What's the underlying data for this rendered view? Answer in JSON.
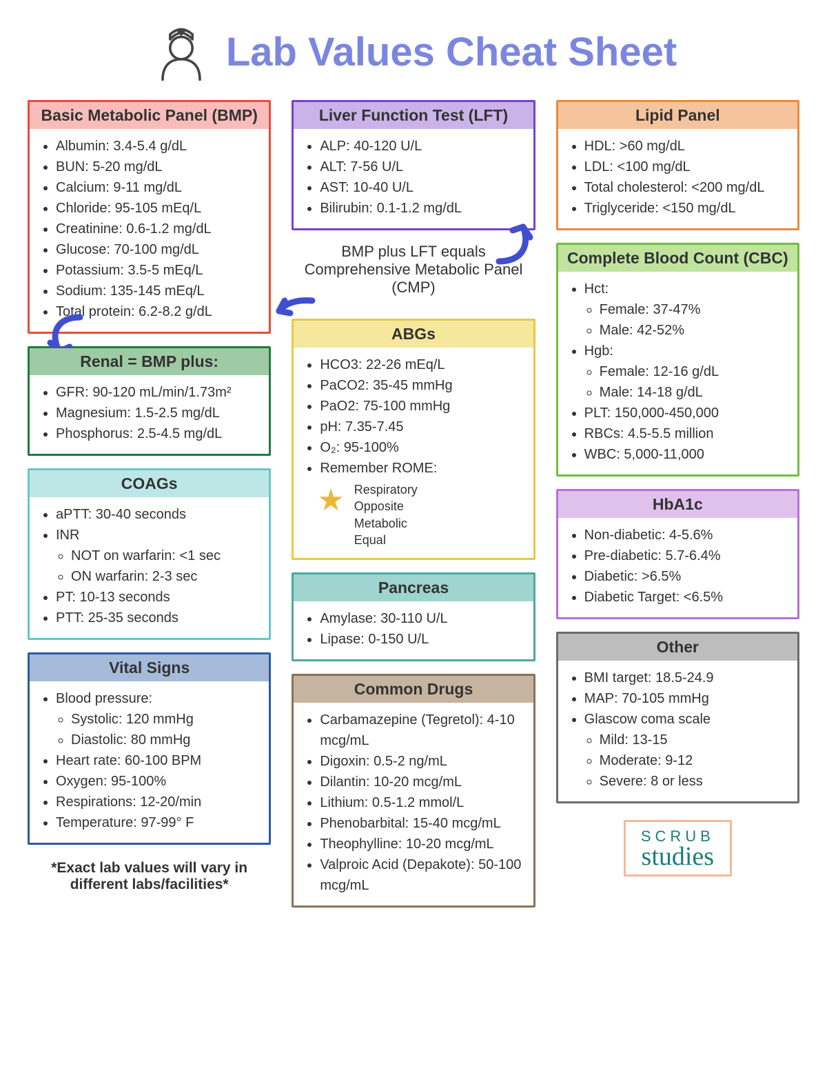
{
  "title": "Lab Values Cheat Sheet",
  "accent_title_color": "#7B86E0",
  "note_cmp": "BMP plus LFT equals Comprehensive Metabolic Panel (CMP)",
  "footnote": "*Exact lab values will vary in different labs/facilities*",
  "logo": {
    "line1": "SCRUB",
    "line2": "studies",
    "border": "#F5B99C",
    "text_color": "#1E7D7B"
  },
  "arrow_color": "#3F4FD0",
  "panels": {
    "bmp": {
      "title": "Basic Metabolic Panel (BMP)",
      "border": "#E74C3C",
      "header_bg": "#F8BDBB",
      "items": [
        "Albumin: 3.4-5.4 g/dL",
        "BUN: 5-20 mg/dL",
        "Calcium: 9-11 mg/dL",
        "Chloride: 95-105 mEq/L",
        "Creatinine: 0.6-1.2 mg/dL",
        "Glucose:  70-100 mg/dL",
        "Potassium: 3.5-5 mEq/L",
        "Sodium: 135-145 mEq/L",
        "Total protein: 6.2-8.2 g/dL"
      ]
    },
    "renal": {
      "title": "Renal = BMP plus:",
      "border": "#1F7A3F",
      "header_bg": "#9FCBA4",
      "items": [
        "GFR: 90-120 mL/min/1.73m²",
        "Magnesium: 1.5-2.5 mg/dL",
        "Phosphorus: 2.5-4.5 mg/dL"
      ]
    },
    "coags": {
      "title": "COAGs",
      "border": "#67C7C7",
      "header_bg": "#BDE7E7",
      "items": [
        {
          "text": "aPTT: 30-40 seconds"
        },
        {
          "text": "INR",
          "sub": [
            "NOT on warfarin: <1 sec",
            "ON warfarin: 2-3 sec"
          ]
        },
        {
          "text": "PT: 10-13 seconds"
        },
        {
          "text": "PTT: 25-35 seconds"
        }
      ]
    },
    "vitals": {
      "title": "Vital Signs",
      "border": "#2C5AA0",
      "header_bg": "#A6BBD9",
      "items": [
        {
          "text": "Blood pressure:",
          "sub": [
            "Systolic: 120 mmHg",
            "Diastolic: 80 mmHg"
          ]
        },
        {
          "text": "Heart rate: 60-100 BPM"
        },
        {
          "text": "Oxygen: 95-100%"
        },
        {
          "text": "Respirations: 12-20/min"
        },
        {
          "text": "Temperature: 97-99° F"
        }
      ]
    },
    "lft": {
      "title": "Liver Function Test (LFT)",
      "border": "#7B3FD0",
      "header_bg": "#C9B3E8",
      "items": [
        "ALP: 40-120 U/L",
        "ALT: 7-56 U/L",
        "AST: 10-40 U/L",
        "Bilirubin: 0.1-1.2 mg/dL"
      ]
    },
    "abgs": {
      "title": "ABGs",
      "border": "#E8C84A",
      "header_bg": "#F5E79C",
      "items": [
        "HCO3: 22-26 mEq/L",
        "PaCO2: 35-45 mmHg",
        "PaO2: 75-100 mmHg",
        "pH: 7.35-7.45",
        "O₂: 95-100%",
        "Remember ROME:"
      ],
      "rome": [
        "Respiratory",
        "Opposite",
        "Metabolic",
        "Equal"
      ]
    },
    "pancreas": {
      "title": "Pancreas",
      "border": "#4FA8A0",
      "header_bg": "#9FD4CF",
      "items": [
        "Amylase: 30-110 U/L",
        "Lipase: 0-150 U/L"
      ]
    },
    "drugs": {
      "title": "Common Drugs",
      "border": "#8C7156",
      "header_bg": "#C5B49F",
      "items": [
        "Carbamazepine (Tegretol): 4-10 mcg/mL",
        "Digoxin: 0.5-2 ng/mL",
        "Dilantin: 10-20 mcg/mL",
        "Lithium: 0.5-1.2 mmol/L",
        "Phenobarbital: 15-40 mcg/mL",
        "Theophylline: 10-20 mcg/mL",
        "Valproic Acid (Depakote):    50-100 mcg/mL"
      ]
    },
    "lipid": {
      "title": "Lipid Panel",
      "border": "#E88B3F",
      "header_bg": "#F5C49C",
      "items": [
        "HDL: >60 mg/dL",
        "LDL: <100 mg/dL",
        "Total cholesterol: <200 mg/dL",
        "Triglyceride: <150 mg/dL"
      ]
    },
    "cbc": {
      "title": "Complete Blood Count (CBC)",
      "border": "#6FBF3F",
      "header_bg": "#C1E3A0",
      "items": [
        {
          "text": "Hct:",
          "sub": [
            "Female: 37-47%",
            "Male: 42-52%"
          ]
        },
        {
          "text": "Hgb:",
          "sub": [
            "Female: 12-16 g/dL",
            "Male: 14-18 g/dL"
          ]
        },
        {
          "text": "PLT: 150,000-450,000"
        },
        {
          "text": "RBCs: 4.5-5.5 million"
        },
        {
          "text": "WBC: 5,000-11,000"
        }
      ]
    },
    "hba1c": {
      "title": "HbA1c",
      "border": "#B96FD8",
      "header_bg": "#E0C1EC",
      "items": [
        "Non-diabetic: 4-5.6%",
        "Pre-diabetic: 5.7-6.4%",
        "Diabetic: >6.5%",
        "Diabetic Target: <6.5%"
      ]
    },
    "other": {
      "title": "Other",
      "border": "#6B6B6B",
      "header_bg": "#BDBDBD",
      "items": [
        {
          "text": "BMI target: 18.5-24.9"
        },
        {
          "text": "MAP: 70-105 mmHg"
        },
        {
          "text": "Glascow coma scale",
          "sub": [
            "Mild: 13-15",
            "Moderate: 9-12",
            "Severe: 8 or less"
          ]
        }
      ]
    }
  }
}
